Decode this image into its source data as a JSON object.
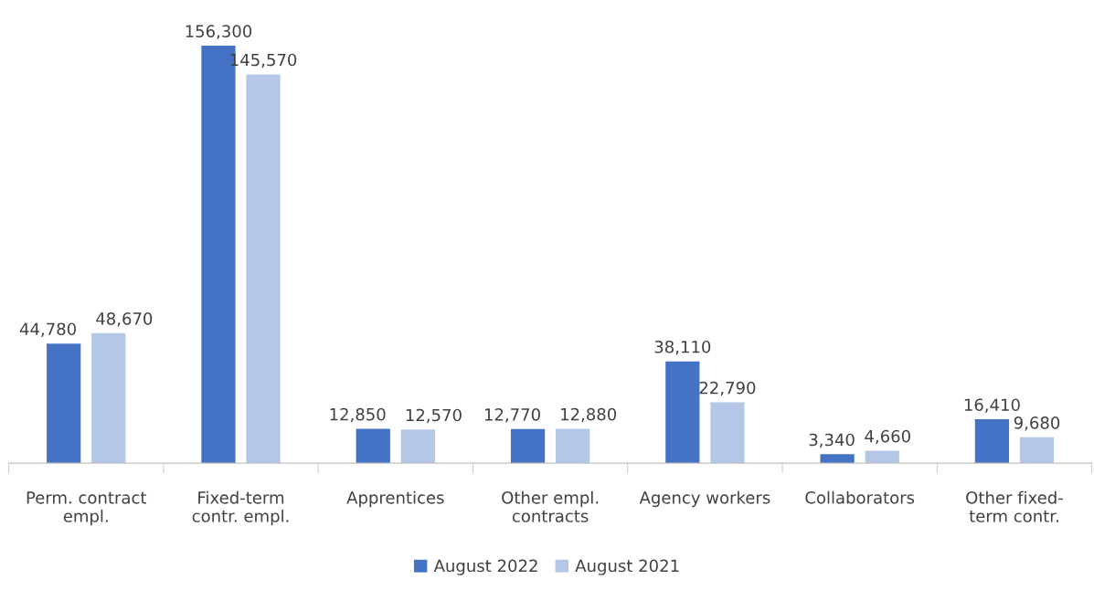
{
  "chart_data": {
    "type": "bar",
    "categories": [
      "Perm. contract\nempl.",
      "Fixed-term\ncontr. empl.",
      "Apprentices",
      "Other empl.\ncontracts",
      "Agency workers",
      "Collaborators",
      "Other fixed-\nterm contr."
    ],
    "series": [
      {
        "name": "August 2022",
        "color": "#4472c4",
        "values": [
          44780,
          156300,
          12850,
          12770,
          38110,
          3340,
          16410
        ],
        "value_labels": [
          "44,780",
          "156,300",
          "12,850",
          "12,770",
          "38,110",
          "3,340",
          "16,410"
        ]
      },
      {
        "name": "August 2021",
        "color": "#b4c7e7",
        "values": [
          48670,
          145570,
          12570,
          12880,
          22790,
          4660,
          9680
        ],
        "value_labels": [
          "48,670",
          "145,570",
          "12,570",
          "12,880",
          "22,790",
          "4,660",
          "9,680"
        ]
      }
    ],
    "legend": "bottom"
  }
}
